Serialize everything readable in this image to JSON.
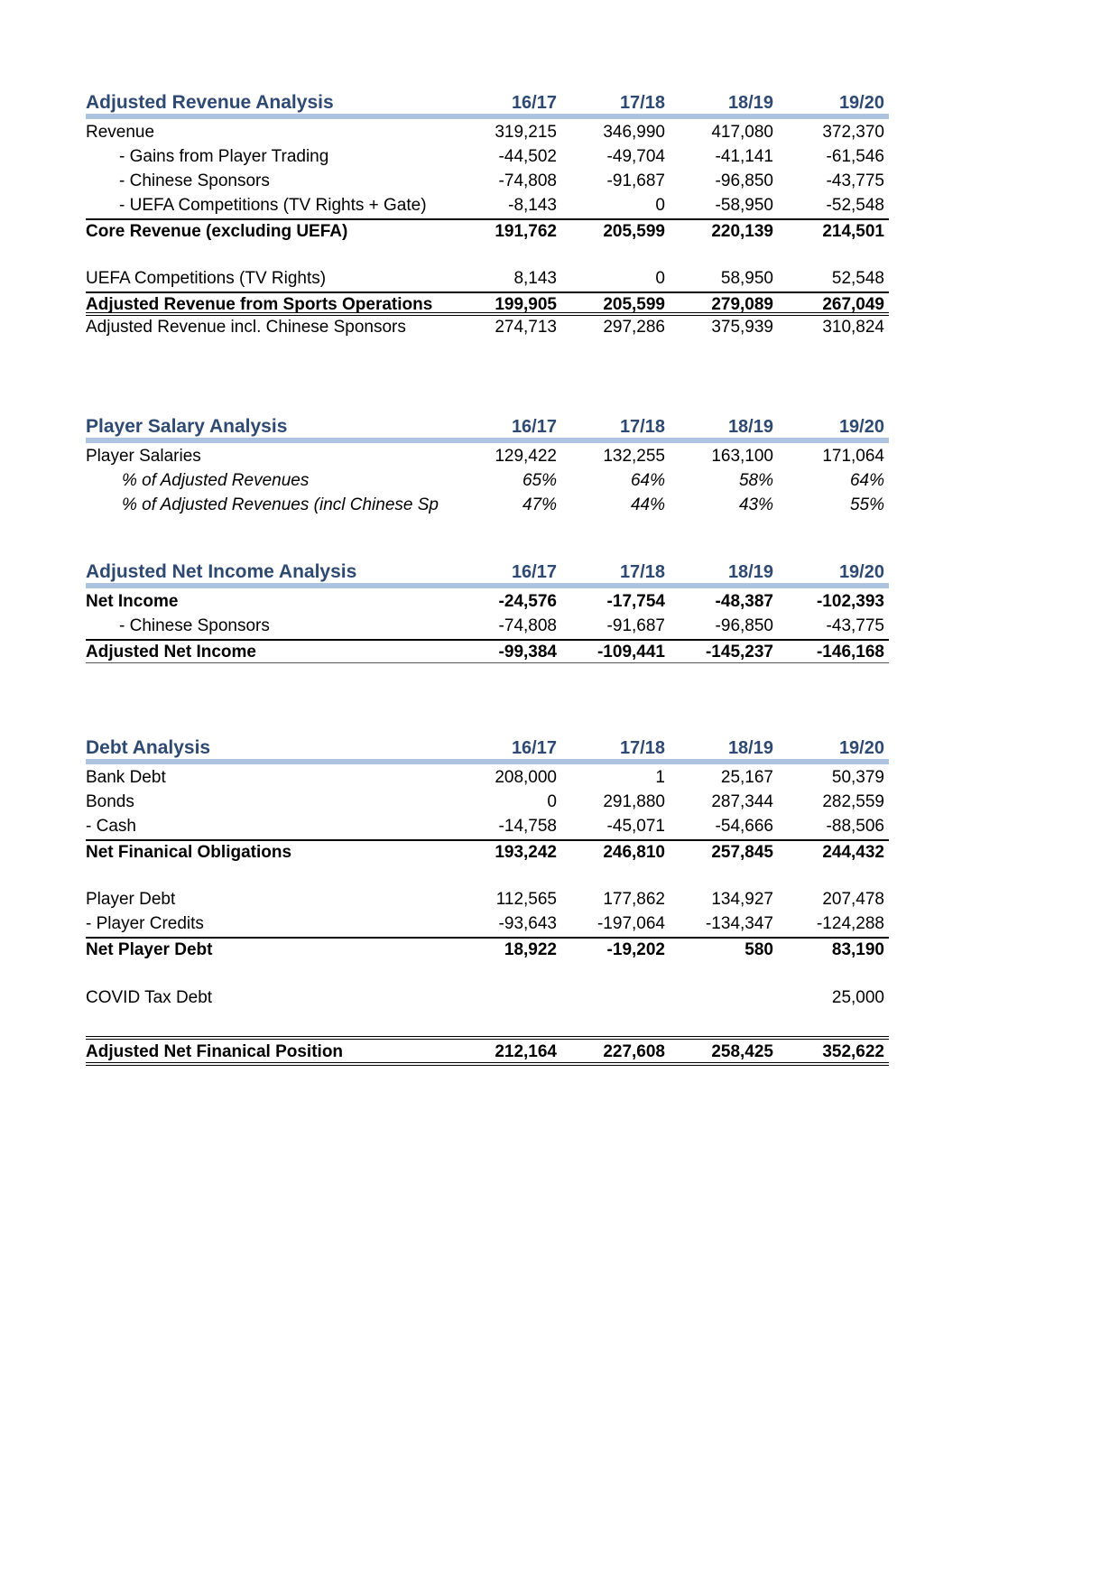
{
  "accent": {
    "header_text_color": "#2e4a73",
    "header_bar_color": "#aec3e0"
  },
  "columns": [
    "16/17",
    "17/18",
    "18/19",
    "19/20"
  ],
  "sections": {
    "revenue": {
      "title": "Adjusted Revenue Analysis",
      "rows": {
        "revenue": {
          "label": "Revenue",
          "v": [
            "319,215",
            "346,990",
            "417,080",
            "372,370"
          ]
        },
        "gains": {
          "label": "- Gains from Player Trading",
          "v": [
            "-44,502",
            "-49,704",
            "-41,141",
            "-61,546"
          ]
        },
        "chinese": {
          "label": "- Chinese Sponsors",
          "v": [
            "-74,808",
            "-91,687",
            "-96,850",
            "-43,775"
          ]
        },
        "uefa_comp": {
          "label": "- UEFA Competitions (TV Rights + Gate)",
          "v": [
            "-8,143",
            "0",
            "-58,950",
            "-52,548"
          ]
        },
        "core": {
          "label": "Core Revenue (excluding UEFA)",
          "v": [
            "191,762",
            "205,599",
            "220,139",
            "214,501"
          ]
        },
        "uefa_tv": {
          "label": "UEFA Competitions (TV Rights)",
          "v": [
            "8,143",
            "0",
            "58,950",
            "52,548"
          ]
        },
        "adj_sports": {
          "label": "Adjusted Revenue from Sports Operations",
          "v": [
            "199,905",
            "205,599",
            "279,089",
            "267,049"
          ]
        },
        "adj_incl": {
          "label": "Adjusted Revenue incl. Chinese Sponsors",
          "v": [
            "274,713",
            "297,286",
            "375,939",
            "310,824"
          ]
        }
      }
    },
    "salary": {
      "title": "Player Salary Analysis",
      "rows": {
        "salaries": {
          "label": "Player Salaries",
          "v": [
            "129,422",
            "132,255",
            "163,100",
            "171,064"
          ]
        },
        "pct_adj": {
          "label": "% of Adjusted Revenues",
          "v": [
            "65%",
            "64%",
            "58%",
            "64%"
          ]
        },
        "pct_incl": {
          "label": "% of Adjusted Revenues (incl Chinese Sp",
          "v": [
            "47%",
            "44%",
            "43%",
            "55%"
          ]
        }
      }
    },
    "net_income": {
      "title": "Adjusted Net Income Analysis",
      "rows": {
        "net_income": {
          "label": "Net Income",
          "v": [
            "-24,576",
            "-17,754",
            "-48,387",
            "-102,393"
          ]
        },
        "chinese": {
          "label": "- Chinese Sponsors",
          "v": [
            "-74,808",
            "-91,687",
            "-96,850",
            "-43,775"
          ]
        },
        "adj_net_income": {
          "label": "Adjusted Net Income",
          "v": [
            "-99,384",
            "-109,441",
            "-145,237",
            "-146,168"
          ]
        }
      }
    },
    "debt": {
      "title": "Debt Analysis",
      "rows": {
        "bank": {
          "label": "Bank Debt",
          "v": [
            "208,000",
            "1",
            "25,167",
            "50,379"
          ]
        },
        "bonds": {
          "label": "Bonds",
          "v": [
            "0",
            "291,880",
            "287,344",
            "282,559"
          ]
        },
        "cash": {
          "label": "- Cash",
          "v": [
            "-14,758",
            "-45,071",
            "-54,666",
            "-88,506"
          ]
        },
        "net_fin": {
          "label": "Net Finanical Obligations",
          "v": [
            "193,242",
            "246,810",
            "257,845",
            "244,432"
          ]
        },
        "player_debt": {
          "label": "Player Debt",
          "v": [
            "112,565",
            "177,862",
            "134,927",
            "207,478"
          ]
        },
        "player_credits": {
          "label": "- Player Credits",
          "v": [
            "-93,643",
            "-197,064",
            "-134,347",
            "-124,288"
          ]
        },
        "net_player_debt": {
          "label": "Net Player Debt",
          "v": [
            "18,922",
            "-19,202",
            "580",
            "83,190"
          ]
        },
        "covid": {
          "label": "COVID Tax Debt",
          "v": [
            "",
            "",
            "",
            "25,000"
          ]
        },
        "adj_net_fin_pos": {
          "label": "Adjusted Net Finanical Position",
          "v": [
            "212,164",
            "227,608",
            "258,425",
            "352,622"
          ]
        }
      }
    }
  }
}
